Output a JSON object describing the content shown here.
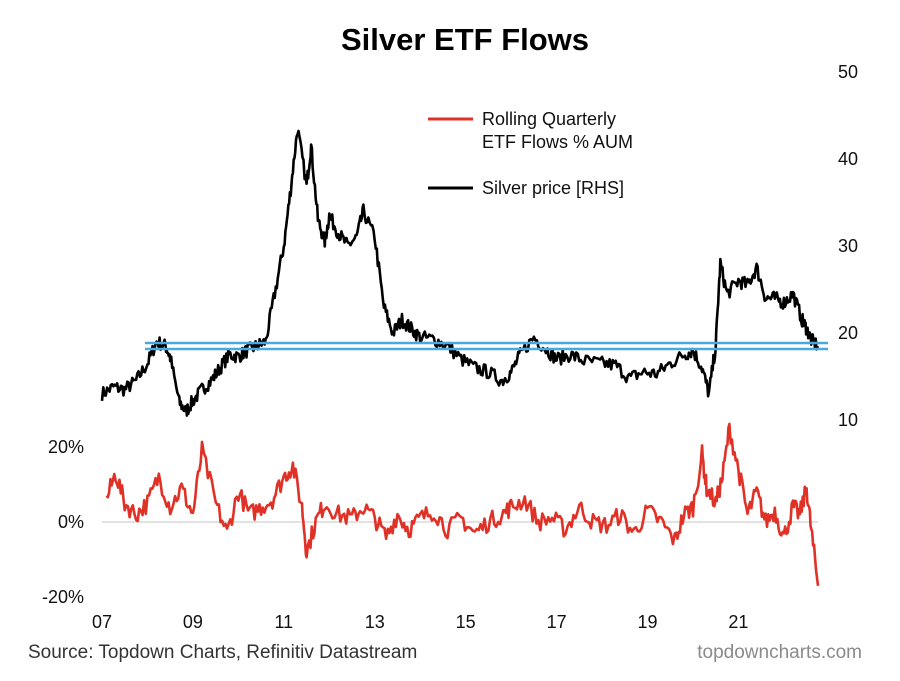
{
  "chart_data": {
    "type": "line",
    "title": "Silver ETF Flows",
    "x_tick_labels": [
      "07",
      "09",
      "11",
      "13",
      "15",
      "17",
      "19",
      "21"
    ],
    "x_range": [
      2007,
      2022.75
    ],
    "left_axis": {
      "tick_labels": [
        "20%",
        "0%",
        "-20%"
      ],
      "ylim": [
        -20,
        20
      ],
      "unit": "%"
    },
    "right_axis": {
      "tick_labels": [
        "50",
        "40",
        "30",
        "20",
        "10"
      ],
      "ylim": [
        10,
        50
      ]
    },
    "legend": {
      "placement": "top-center",
      "entries": [
        "Rolling Quarterly ETF Flows % AUM",
        "Silver price [RHS]"
      ]
    },
    "colors": {
      "flows": "#e03127",
      "price": "#000000",
      "band": "#4aa8e0",
      "zero_line": "#d8d8d8"
    },
    "series": [
      {
        "name": "Silver price [RHS]",
        "axis": "right",
        "color": "#000000",
        "x": [
          2007.0,
          2007.25,
          2007.5,
          2007.75,
          2008.0,
          2008.2,
          2008.4,
          2008.5,
          2008.7,
          2008.85,
          2009.0,
          2009.2,
          2009.4,
          2009.6,
          2009.8,
          2010.0,
          2010.2,
          2010.4,
          2010.6,
          2010.8,
          2011.0,
          2011.15,
          2011.3,
          2011.5,
          2011.6,
          2011.75,
          2011.9,
          2012.0,
          2012.2,
          2012.4,
          2012.6,
          2012.75,
          2013.0,
          2013.2,
          2013.4,
          2013.6,
          2013.8,
          2014.0,
          2014.3,
          2014.6,
          2014.9,
          2015.2,
          2015.5,
          2015.8,
          2016.0,
          2016.2,
          2016.5,
          2016.8,
          2017.0,
          2017.3,
          2017.6,
          2018.0,
          2018.3,
          2018.6,
          2018.9,
          2019.2,
          2019.5,
          2019.8,
          2020.0,
          2020.2,
          2020.35,
          2020.5,
          2020.6,
          2020.75,
          2021.0,
          2021.2,
          2021.4,
          2021.6,
          2021.8,
          2022.0,
          2022.2,
          2022.4,
          2022.5,
          2022.6,
          2022.75
        ],
        "y": [
          13.0,
          13.8,
          13.5,
          14.5,
          16.5,
          19.0,
          18.5,
          17.2,
          12.0,
          11.0,
          12.2,
          13.5,
          14.5,
          16.0,
          17.5,
          17.3,
          18.0,
          18.5,
          19.0,
          24.5,
          30.0,
          36.5,
          43.5,
          37.0,
          41.5,
          33.0,
          30.5,
          33.5,
          31.5,
          30.0,
          31.0,
          34.0,
          31.0,
          23.0,
          20.0,
          21.5,
          20.5,
          19.5,
          19.3,
          18.5,
          17.0,
          16.0,
          15.5,
          14.5,
          15.5,
          17.5,
          19.5,
          18.0,
          17.0,
          17.5,
          16.8,
          16.5,
          16.3,
          14.8,
          15.5,
          15.3,
          16.5,
          17.5,
          18.0,
          16.0,
          13.0,
          18.5,
          28.0,
          24.5,
          26.0,
          25.5,
          27.5,
          24.0,
          24.0,
          23.5,
          24.5,
          21.5,
          20.5,
          19.2,
          18.5
        ]
      },
      {
        "name": "Rolling Quarterly ETF Flows % AUM",
        "axis": "left",
        "color": "#e03127",
        "x": [
          2007.1,
          2007.3,
          2007.5,
          2007.75,
          2008.0,
          2008.25,
          2008.5,
          2008.75,
          2009.0,
          2009.2,
          2009.5,
          2009.75,
          2010.0,
          2010.25,
          2010.5,
          2010.75,
          2011.0,
          2011.2,
          2011.4,
          2011.5,
          2011.7,
          2011.9,
          2012.2,
          2012.5,
          2012.75,
          2013.0,
          2013.25,
          2013.5,
          2013.75,
          2014.0,
          2014.3,
          2014.6,
          2014.9,
          2015.2,
          2015.5,
          2015.8,
          2016.0,
          2016.3,
          2016.6,
          2016.9,
          2017.2,
          2017.5,
          2017.8,
          2018.1,
          2018.4,
          2018.7,
          2019.0,
          2019.3,
          2019.6,
          2019.8,
          2020.0,
          2020.2,
          2020.3,
          2020.5,
          2020.65,
          2020.8,
          2021.0,
          2021.2,
          2021.4,
          2021.6,
          2021.8,
          2022.0,
          2022.2,
          2022.35,
          2022.5,
          2022.6,
          2022.75
        ],
        "y": [
          6.0,
          13.0,
          5.0,
          2.0,
          5.0,
          12.0,
          4.0,
          9.0,
          2.0,
          19.0,
          5.0,
          -3.0,
          8.0,
          2.0,
          4.0,
          6.0,
          12.0,
          15.0,
          4.0,
          -8.0,
          0.0,
          5.0,
          2.0,
          1.0,
          4.0,
          1.0,
          -4.0,
          2.0,
          -2.0,
          1.0,
          3.0,
          -2.0,
          1.0,
          -3.0,
          0.0,
          2.0,
          4.0,
          6.0,
          0.0,
          1.0,
          -2.0,
          4.0,
          0.0,
          -1.0,
          2.0,
          -3.0,
          3.0,
          0.0,
          -5.0,
          2.0,
          4.0,
          18.0,
          9.0,
          5.0,
          12.0,
          25.0,
          14.0,
          2.0,
          8.0,
          0.0,
          3.0,
          -4.0,
          4.0,
          2.0,
          9.0,
          -2.0,
          -17.0
        ]
      }
    ],
    "annotations": [
      {
        "type": "horizontal_band",
        "axis": "right",
        "value": 18.5,
        "label": ""
      }
    ],
    "grid": false
  },
  "footer": {
    "source": "Source: Topdown Charts, Refinitiv Datastream",
    "brand": "topdowncharts.com"
  }
}
